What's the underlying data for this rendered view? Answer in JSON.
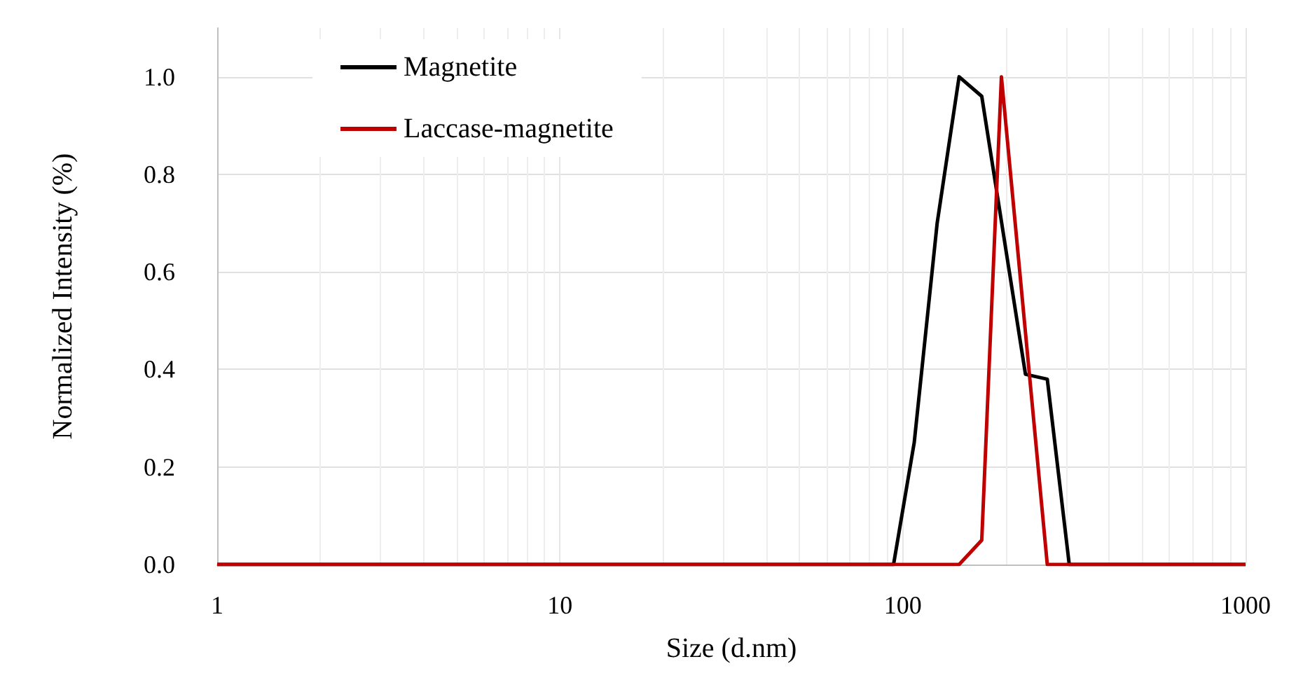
{
  "chart_data": {
    "type": "line",
    "xlabel": "Size (d.nm)",
    "ylabel": "Normalized Intensity (%)",
    "xlim": [
      1,
      1000
    ],
    "xticks": [
      1,
      10,
      100,
      1000
    ],
    "log": "x",
    "ylim": [
      0,
      1.1
    ],
    "yticks": [
      {
        "value": 0,
        "label": "0.0"
      },
      {
        "value": 0.2,
        "label": "0.2"
      },
      {
        "value": 0.4,
        "label": "0.4"
      },
      {
        "value": 0.6,
        "label": "0.6"
      },
      {
        "value": 0.8,
        "label": "0.8"
      },
      {
        "value": 1,
        "label": "1.0"
      }
    ],
    "grid": true,
    "legend": "top left",
    "marker": "none",
    "line_style": "solid",
    "series": [
      {
        "name": "Magnetite",
        "color": "#000000",
        "x": [
          1,
          94,
          108,
          126,
          146,
          170,
          228,
          264,
          306,
          1000
        ],
        "values": [
          0,
          0,
          0.25,
          0.7,
          1,
          0.96,
          0.39,
          0.38,
          0,
          0
        ]
      },
      {
        "name": "Laccase-magnetite",
        "color": "#c00000",
        "x": [
          1,
          146,
          170,
          194,
          264,
          1000
        ],
        "values": [
          0,
          0,
          0.05,
          1,
          0,
          0
        ]
      }
    ]
  }
}
